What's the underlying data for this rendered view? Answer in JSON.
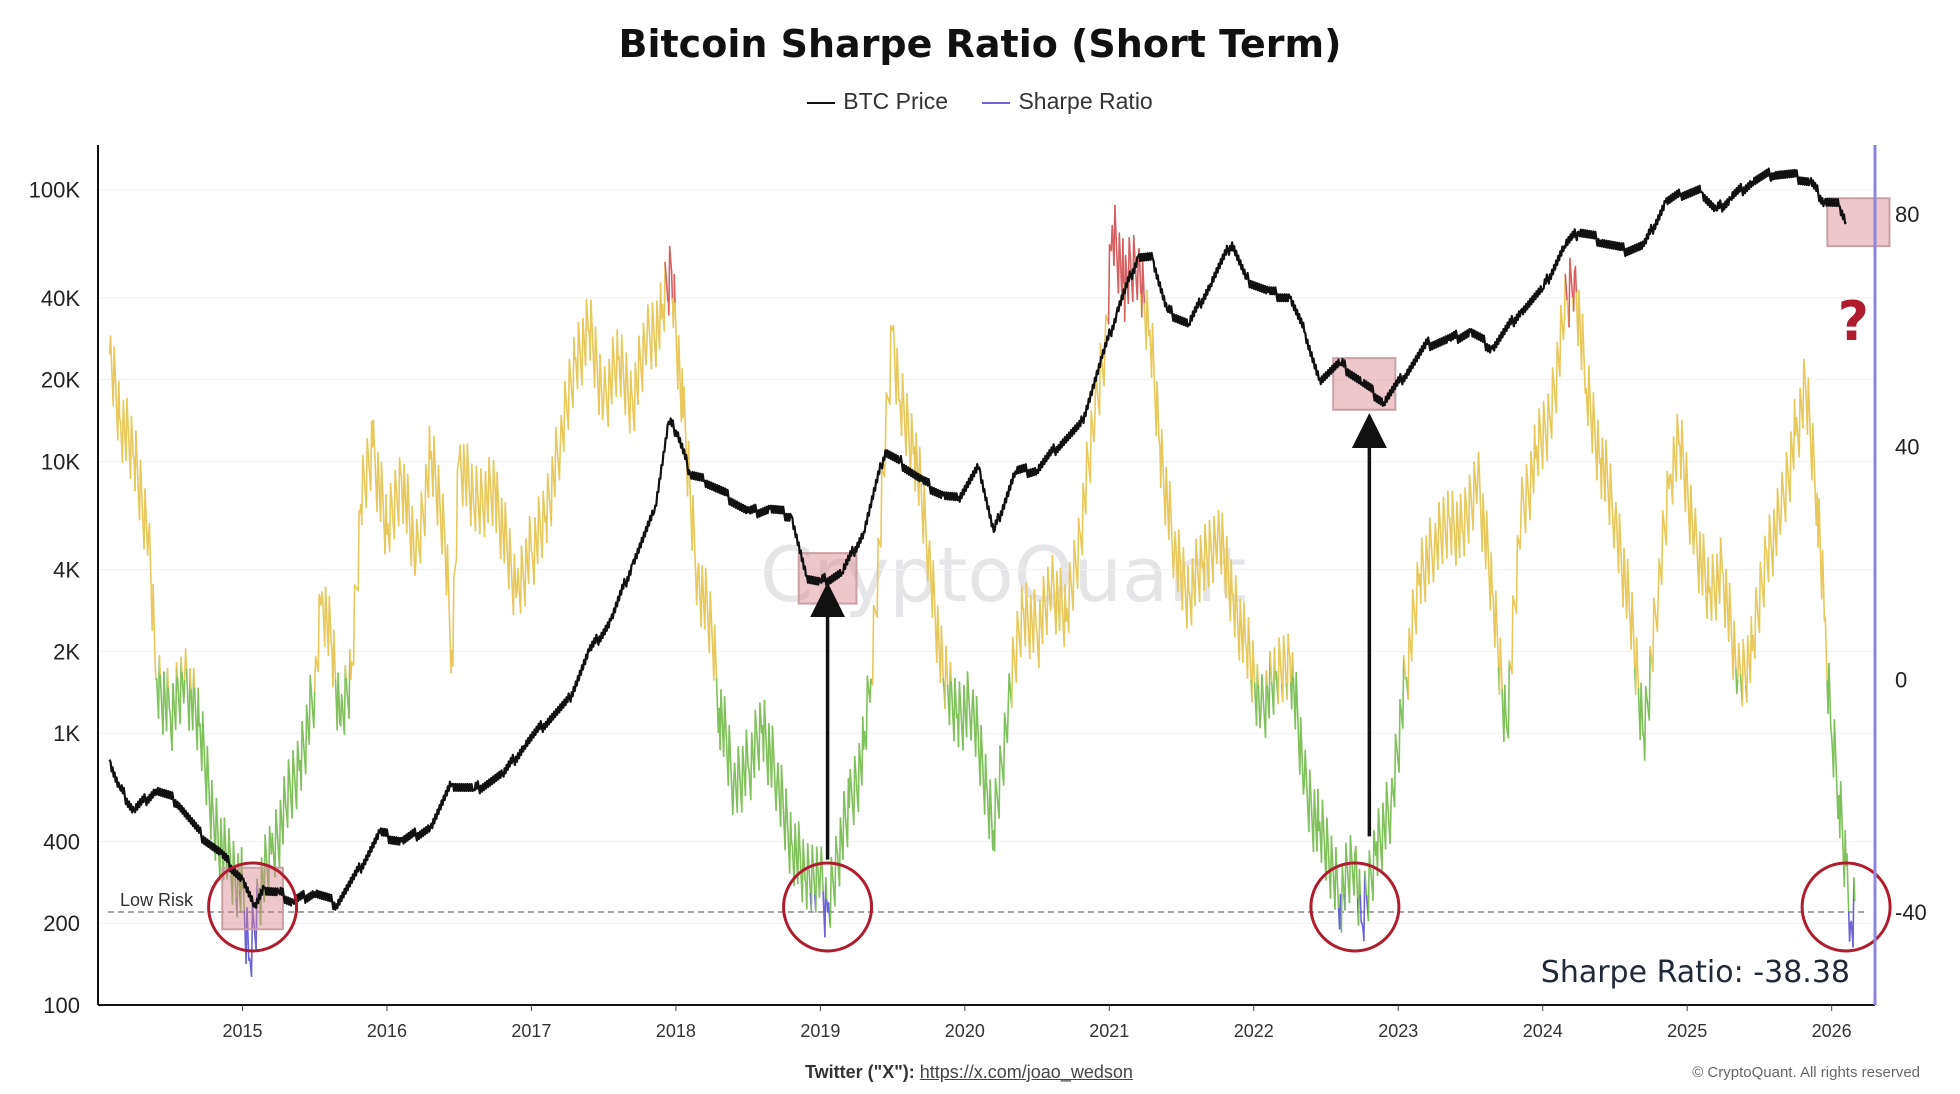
{
  "chart_data": {
    "type": "line",
    "title": "Bitcoin Sharpe Ratio (Short Term)",
    "legend": {
      "placement": "top-center",
      "entries": [
        {
          "name": "BTC Price",
          "color": "#111111"
        },
        {
          "name": "Sharpe Ratio",
          "color": "#6b63d6"
        }
      ]
    },
    "x_ticks": [
      "2015",
      "2016",
      "2017",
      "2018",
      "2019",
      "2020",
      "2021",
      "2022",
      "2023",
      "2024",
      "2025",
      "2026"
    ],
    "xlim": [
      2014.0,
      2026.3
    ],
    "y_left": {
      "scale": "log",
      "ticks": [
        100,
        200,
        400,
        1000,
        2000,
        4000,
        10000,
        20000,
        40000,
        100000
      ],
      "tick_labels": [
        "100",
        "200",
        "400",
        "1K",
        "2K",
        "4K",
        "10K",
        "20K",
        "40K",
        "100K"
      ],
      "range": [
        100,
        140000
      ]
    },
    "y_right": {
      "scale": "linear",
      "ticks": [
        -40,
        0,
        40,
        80
      ],
      "tick_labels": [
        "-40",
        "0",
        "40",
        "80"
      ],
      "range": [
        -56,
        91
      ]
    },
    "low_risk_line": {
      "value": -40,
      "label": "Low Risk"
    },
    "series": [
      {
        "name": "BTC Price",
        "axis": "left",
        "points": [
          [
            2014.08,
            800
          ],
          [
            2014.15,
            630
          ],
          [
            2014.25,
            520
          ],
          [
            2014.4,
            620
          ],
          [
            2014.55,
            560
          ],
          [
            2014.7,
            430
          ],
          [
            2014.85,
            360
          ],
          [
            2015.0,
            290
          ],
          [
            2015.08,
            230
          ],
          [
            2015.15,
            270
          ],
          [
            2015.25,
            260
          ],
          [
            2015.35,
            240
          ],
          [
            2015.5,
            260
          ],
          [
            2015.65,
            235
          ],
          [
            2015.8,
            310
          ],
          [
            2015.95,
            430
          ],
          [
            2016.1,
            400
          ],
          [
            2016.3,
            450
          ],
          [
            2016.45,
            650
          ],
          [
            2016.6,
            620
          ],
          [
            2016.8,
            700
          ],
          [
            2016.95,
            900
          ],
          [
            2017.1,
            1100
          ],
          [
            2017.25,
            1300
          ],
          [
            2017.4,
            2000
          ],
          [
            2017.55,
            2600
          ],
          [
            2017.7,
            4200
          ],
          [
            2017.85,
            6500
          ],
          [
            2017.95,
            14000
          ],
          [
            2018.0,
            13000
          ],
          [
            2018.1,
            9000
          ],
          [
            2018.2,
            8500
          ],
          [
            2018.35,
            7500
          ],
          [
            2018.5,
            6500
          ],
          [
            2018.65,
            6700
          ],
          [
            2018.8,
            6300
          ],
          [
            2018.9,
            3800
          ],
          [
            2019.0,
            3600
          ],
          [
            2019.15,
            3900
          ],
          [
            2019.3,
            5500
          ],
          [
            2019.45,
            11000
          ],
          [
            2019.55,
            10000
          ],
          [
            2019.7,
            8500
          ],
          [
            2019.85,
            7500
          ],
          [
            2019.95,
            7200
          ],
          [
            2020.1,
            9500
          ],
          [
            2020.2,
            5500
          ],
          [
            2020.35,
            9200
          ],
          [
            2020.5,
            9300
          ],
          [
            2020.65,
            11500
          ],
          [
            2020.8,
            13500
          ],
          [
            2020.95,
            24000
          ],
          [
            2021.05,
            35000
          ],
          [
            2021.2,
            57000
          ],
          [
            2021.3,
            56000
          ],
          [
            2021.4,
            36000
          ],
          [
            2021.55,
            32000
          ],
          [
            2021.7,
            45000
          ],
          [
            2021.85,
            64000
          ],
          [
            2021.95,
            47000
          ],
          [
            2022.1,
            42000
          ],
          [
            2022.25,
            40000
          ],
          [
            2022.35,
            30000
          ],
          [
            2022.45,
            20000
          ],
          [
            2022.6,
            23000
          ],
          [
            2022.75,
            19500
          ],
          [
            2022.9,
            16500
          ],
          [
            2023.05,
            21000
          ],
          [
            2023.2,
            27000
          ],
          [
            2023.35,
            28000
          ],
          [
            2023.5,
            30000
          ],
          [
            2023.65,
            26000
          ],
          [
            2023.85,
            36000
          ],
          [
            2024.0,
            43000
          ],
          [
            2024.15,
            62000
          ],
          [
            2024.25,
            70000
          ],
          [
            2024.4,
            65000
          ],
          [
            2024.55,
            60000
          ],
          [
            2024.7,
            62000
          ],
          [
            2024.85,
            90000
          ],
          [
            2024.95,
            95000
          ],
          [
            2025.1,
            98000
          ],
          [
            2025.2,
            84000
          ],
          [
            2025.3,
            93000
          ],
          [
            2025.45,
            107000
          ],
          [
            2025.6,
            115000
          ],
          [
            2025.75,
            112000
          ],
          [
            2025.85,
            107000
          ],
          [
            2025.95,
            90000
          ],
          [
            2026.05,
            87000
          ],
          [
            2026.1,
            76000
          ]
        ]
      },
      {
        "name": "Sharpe Ratio",
        "axis": "right",
        "points": [
          [
            2014.08,
            56
          ],
          [
            2014.15,
            45
          ],
          [
            2014.25,
            38
          ],
          [
            2014.35,
            25
          ],
          [
            2014.4,
            0
          ],
          [
            2014.5,
            -6
          ],
          [
            2014.6,
            0
          ],
          [
            2014.7,
            -8
          ],
          [
            2014.8,
            -24
          ],
          [
            2014.9,
            -32
          ],
          [
            2015.0,
            -36
          ],
          [
            2015.05,
            -48
          ],
          [
            2015.12,
            -36
          ],
          [
            2015.2,
            -30
          ],
          [
            2015.3,
            -22
          ],
          [
            2015.4,
            -14
          ],
          [
            2015.5,
            -2
          ],
          [
            2015.55,
            15
          ],
          [
            2015.62,
            5
          ],
          [
            2015.68,
            -8
          ],
          [
            2015.75,
            0
          ],
          [
            2015.82,
            30
          ],
          [
            2015.9,
            40
          ],
          [
            2016.0,
            25
          ],
          [
            2016.1,
            35
          ],
          [
            2016.2,
            20
          ],
          [
            2016.3,
            38
          ],
          [
            2016.4,
            25
          ],
          [
            2016.45,
            5
          ],
          [
            2016.5,
            38
          ],
          [
            2016.6,
            30
          ],
          [
            2016.75,
            32
          ],
          [
            2016.9,
            15
          ],
          [
            2017.0,
            22
          ],
          [
            2017.1,
            28
          ],
          [
            2017.2,
            40
          ],
          [
            2017.3,
            55
          ],
          [
            2017.4,
            60
          ],
          [
            2017.5,
            48
          ],
          [
            2017.6,
            55
          ],
          [
            2017.7,
            48
          ],
          [
            2017.8,
            58
          ],
          [
            2017.9,
            62
          ],
          [
            2017.97,
            70
          ],
          [
            2018.05,
            45
          ],
          [
            2018.15,
            18
          ],
          [
            2018.25,
            8
          ],
          [
            2018.3,
            -5
          ],
          [
            2018.4,
            -18
          ],
          [
            2018.5,
            -15
          ],
          [
            2018.6,
            -8
          ],
          [
            2018.7,
            -18
          ],
          [
            2018.8,
            -28
          ],
          [
            2018.9,
            -35
          ],
          [
            2019.0,
            -33
          ],
          [
            2019.05,
            -40
          ],
          [
            2019.12,
            -30
          ],
          [
            2019.2,
            -22
          ],
          [
            2019.3,
            -12
          ],
          [
            2019.35,
            0
          ],
          [
            2019.45,
            40
          ],
          [
            2019.5,
            60
          ],
          [
            2019.55,
            48
          ],
          [
            2019.65,
            40
          ],
          [
            2019.75,
            22
          ],
          [
            2019.85,
            0
          ],
          [
            2019.95,
            -6
          ],
          [
            2020.05,
            -5
          ],
          [
            2020.15,
            -18
          ],
          [
            2020.2,
            -26
          ],
          [
            2020.3,
            -5
          ],
          [
            2020.4,
            12
          ],
          [
            2020.5,
            8
          ],
          [
            2020.6,
            16
          ],
          [
            2020.7,
            10
          ],
          [
            2020.8,
            25
          ],
          [
            2020.9,
            45
          ],
          [
            2020.97,
            58
          ],
          [
            2021.02,
            78
          ],
          [
            2021.1,
            68
          ],
          [
            2021.2,
            72
          ],
          [
            2021.28,
            60
          ],
          [
            2021.35,
            40
          ],
          [
            2021.45,
            22
          ],
          [
            2021.55,
            15
          ],
          [
            2021.65,
            20
          ],
          [
            2021.75,
            25
          ],
          [
            2021.85,
            15
          ],
          [
            2021.95,
            5
          ],
          [
            2022.05,
            -5
          ],
          [
            2022.15,
            0
          ],
          [
            2022.25,
            4
          ],
          [
            2022.35,
            -18
          ],
          [
            2022.45,
            -26
          ],
          [
            2022.55,
            -33
          ],
          [
            2022.6,
            -37
          ],
          [
            2022.7,
            -30
          ],
          [
            2022.75,
            -42
          ],
          [
            2022.85,
            -28
          ],
          [
            2022.95,
            -22
          ],
          [
            2023.05,
            0
          ],
          [
            2023.15,
            18
          ],
          [
            2023.25,
            22
          ],
          [
            2023.35,
            28
          ],
          [
            2023.45,
            25
          ],
          [
            2023.55,
            35
          ],
          [
            2023.65,
            15
          ],
          [
            2023.75,
            -8
          ],
          [
            2023.85,
            28
          ],
          [
            2023.95,
            38
          ],
          [
            2024.05,
            45
          ],
          [
            2024.15,
            62
          ],
          [
            2024.22,
            70
          ],
          [
            2024.3,
            50
          ],
          [
            2024.4,
            38
          ],
          [
            2024.5,
            28
          ],
          [
            2024.6,
            12
          ],
          [
            2024.7,
            -10
          ],
          [
            2024.8,
            15
          ],
          [
            2024.88,
            35
          ],
          [
            2024.95,
            40
          ],
          [
            2025.05,
            25
          ],
          [
            2025.15,
            15
          ],
          [
            2025.25,
            18
          ],
          [
            2025.35,
            0
          ],
          [
            2025.45,
            5
          ],
          [
            2025.55,
            22
          ],
          [
            2025.65,
            28
          ],
          [
            2025.75,
            42
          ],
          [
            2025.82,
            50
          ],
          [
            2025.9,
            32
          ],
          [
            2025.95,
            10
          ],
          [
            2026.0,
            -10
          ],
          [
            2026.05,
            -20
          ],
          [
            2026.1,
            -32
          ],
          [
            2026.13,
            -42
          ],
          [
            2026.16,
            -38
          ]
        ]
      }
    ],
    "color_zones": [
      {
        "label": "green",
        "color": "#7fc15a"
      },
      {
        "label": "yellow",
        "color": "#e8c85b"
      },
      {
        "label": "red",
        "color": "#d66060"
      },
      {
        "label": "purple",
        "color": "#6b63d6"
      }
    ],
    "annotations": {
      "watermark": "CryptoQuant",
      "question_mark": "?",
      "readout_label": "Sharpe Ratio:",
      "readout_value": "-38.38",
      "highlight_boxes": [
        {
          "x": [
            2014.86,
            2015.28
          ],
          "y": [
            190,
            320
          ]
        },
        {
          "x": [
            2018.85,
            2019.25
          ],
          "y": [
            3000,
            4600
          ]
        },
        {
          "x": [
            2022.55,
            2022.98
          ],
          "y": [
            15500,
            24000
          ]
        },
        {
          "x": [
            2025.97,
            2026.4
          ],
          "y": [
            62000,
            93000
          ]
        }
      ],
      "circles_at": [
        2015.07,
        2019.05,
        2022.7,
        2026.1
      ],
      "arrows": [
        {
          "x": 2019.05,
          "from_sharpe": -31,
          "to_price": 3100
        },
        {
          "x": 2022.8,
          "from_sharpe": -27,
          "to_price": 13000
        }
      ]
    }
  },
  "footer": {
    "twitter_prefix": "Twitter (\"X\"):",
    "twitter_url": "https://x.com/joao_wedson",
    "copyright": "© CryptoQuant. All rights reserved"
  }
}
